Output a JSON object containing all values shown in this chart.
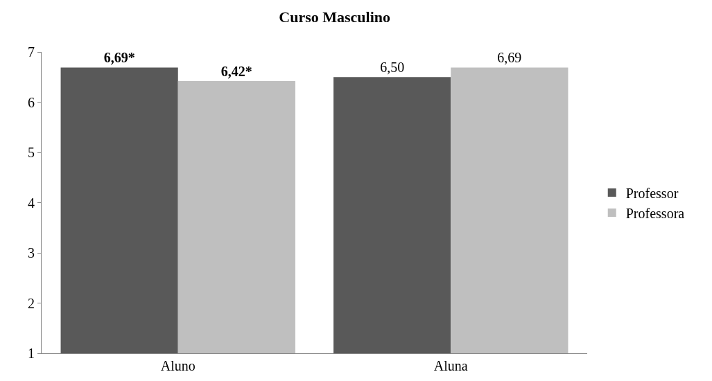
{
  "chart_data": {
    "type": "bar",
    "title": "Curso Masculino",
    "categories": [
      "Aluno",
      "Aluna"
    ],
    "series": [
      {
        "name": "Professor",
        "color": "#595959",
        "values": [
          6.69,
          6.5
        ],
        "value_labels": [
          "6,69*",
          "6,50"
        ]
      },
      {
        "name": "Professora",
        "color": "#bfbfbf",
        "values": [
          6.42,
          6.69
        ],
        "value_labels": [
          "6,42*",
          "6,69"
        ]
      }
    ],
    "ylim": [
      1,
      7
    ],
    "yticks": [
      1,
      2,
      3,
      4,
      5,
      6,
      7
    ],
    "legend": "right"
  }
}
